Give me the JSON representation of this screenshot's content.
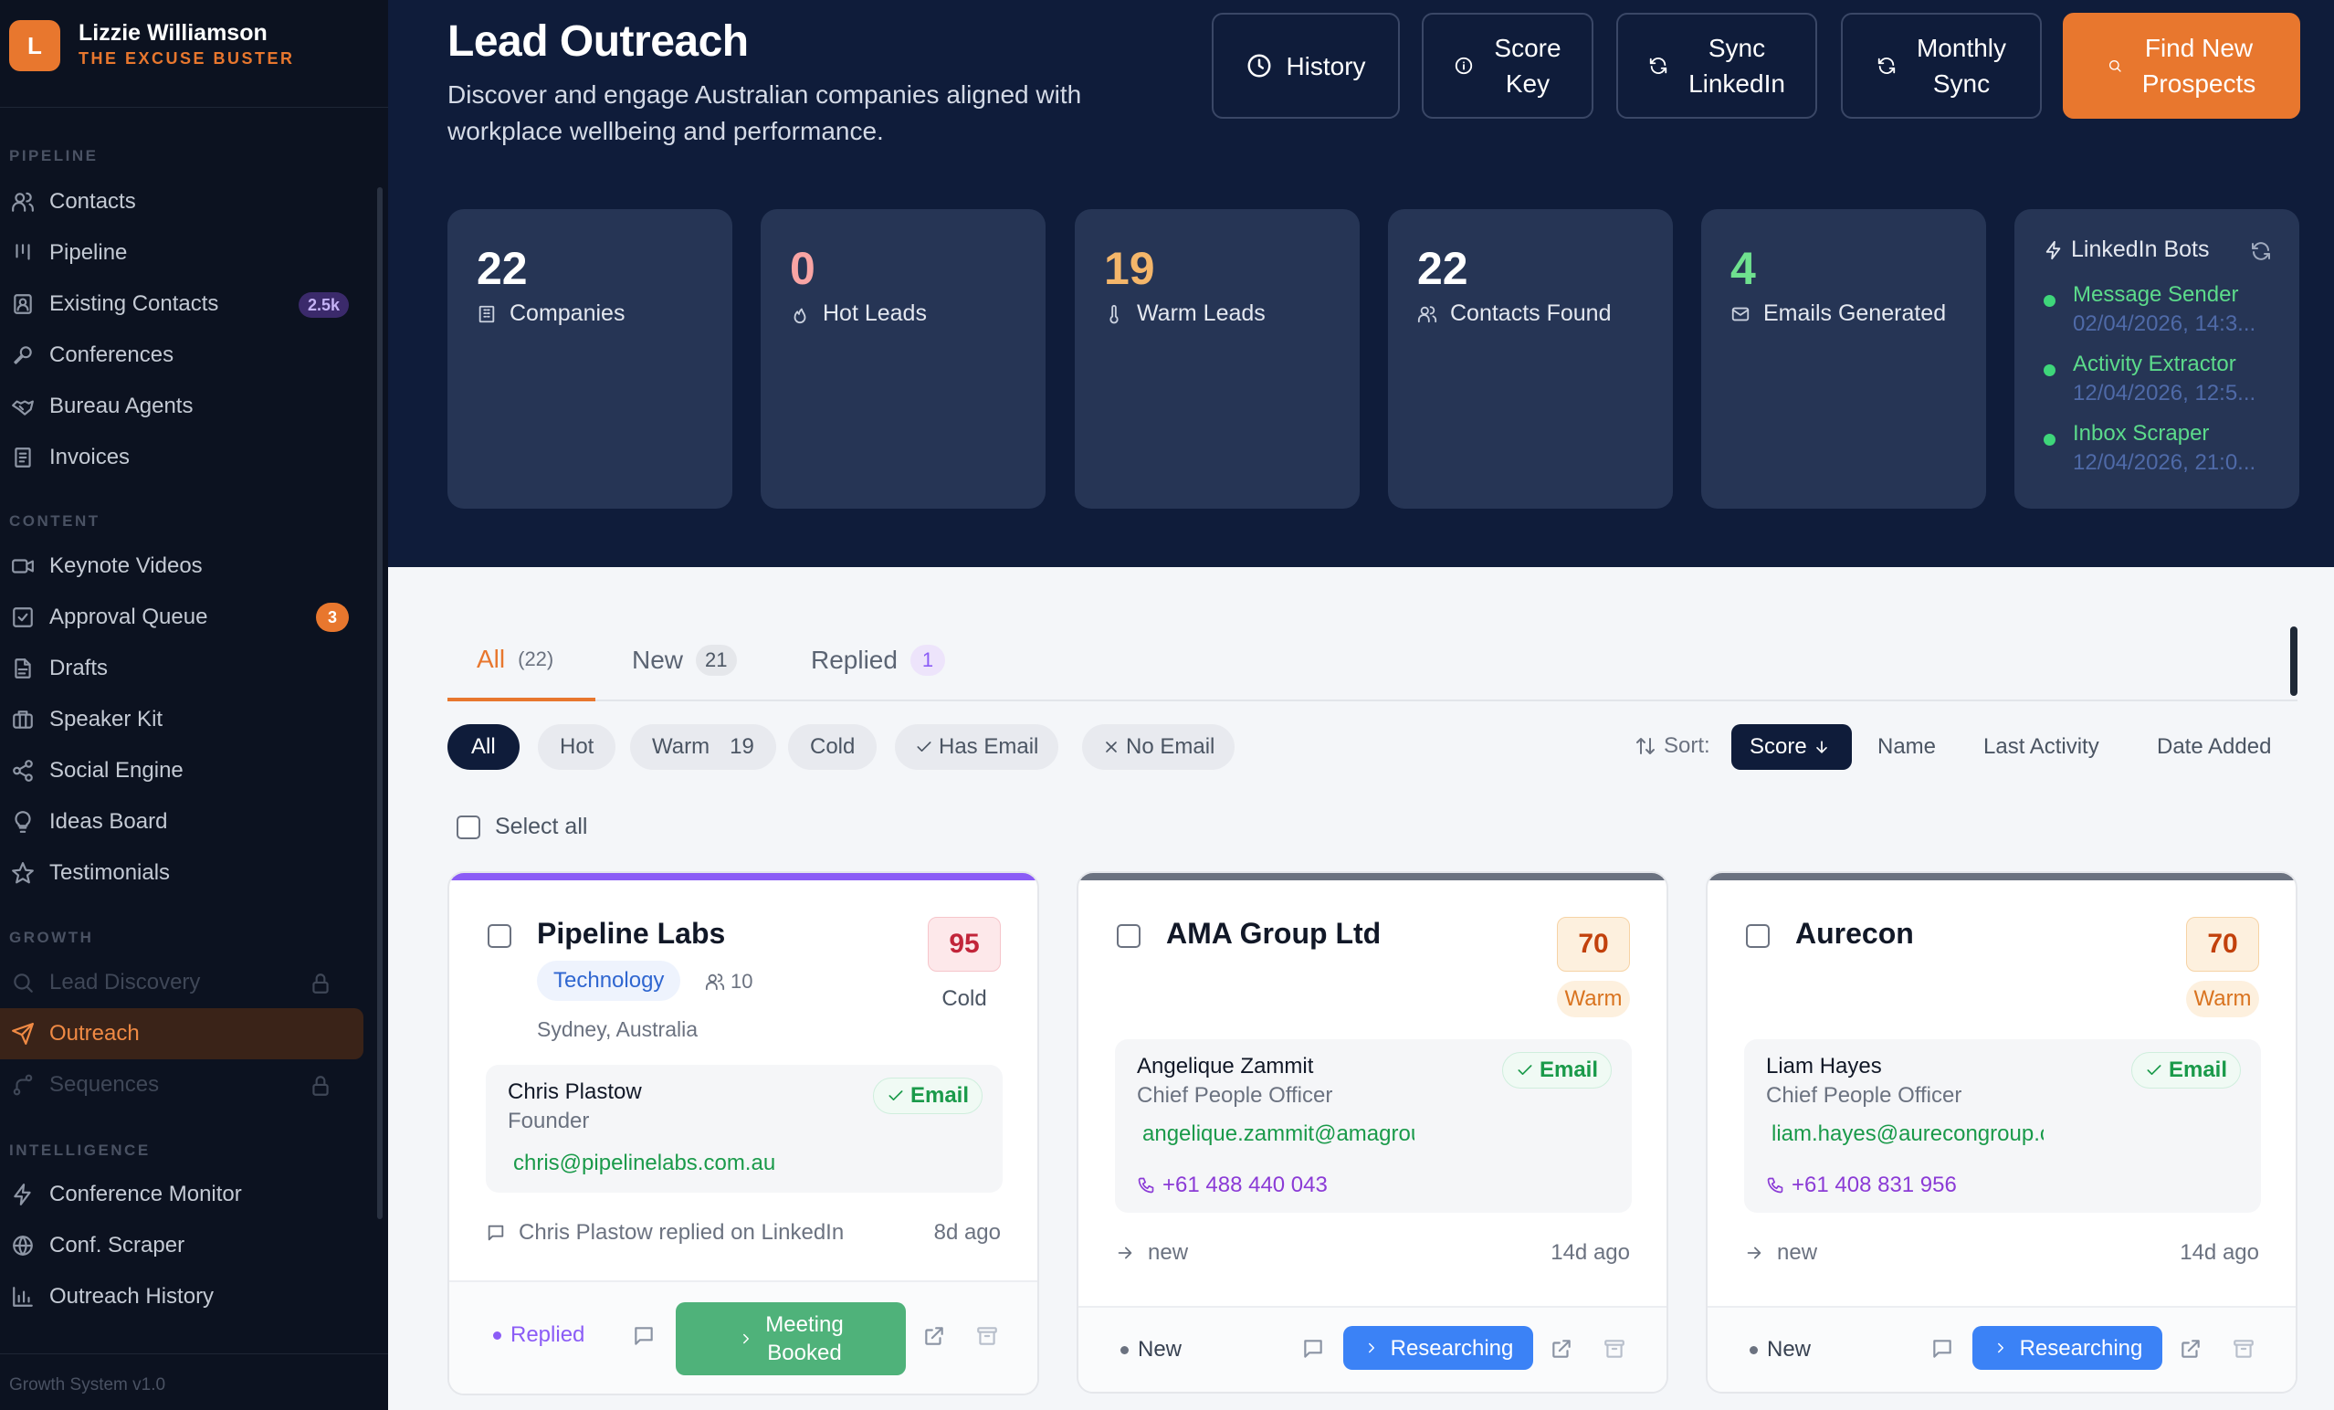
{
  "sidebar": {
    "brand_initial": "L",
    "brand_name": "Lizzie Williamson",
    "brand_sub": "THE EXCUSE BUSTER",
    "sections": {
      "pipeline": "PIPELINE",
      "content": "CONTENT",
      "growth": "GROWTH",
      "intelligence": "INTELLIGENCE"
    },
    "items": {
      "contacts": "Contacts",
      "pipeline": "Pipeline",
      "existing_contacts": "Existing Contacts",
      "existing_badge": "2.5k",
      "conferences": "Conferences",
      "bureau_agents": "Bureau Agents",
      "invoices": "Invoices",
      "keynote_videos": "Keynote Videos",
      "approval_queue": "Approval Queue",
      "approval_badge": "3",
      "drafts": "Drafts",
      "speaker_kit": "Speaker Kit",
      "social_engine": "Social Engine",
      "ideas_board": "Ideas Board",
      "testimonials": "Testimonials",
      "lead_discovery": "Lead Discovery",
      "outreach": "Outreach",
      "sequences": "Sequences",
      "conference_monitor": "Conference Monitor",
      "conf_scraper": "Conf. Scraper",
      "outreach_history": "Outreach History"
    },
    "footer": "Growth System v1.0"
  },
  "header": {
    "title": "Lead Outreach",
    "subtitle": "Discover and engage Australian companies aligned with workplace wellbeing and performance.",
    "buttons": {
      "history": "History",
      "score_key_1": "Score",
      "score_key_2": "Key",
      "sync_linkedin_1": "Sync",
      "sync_linkedin_2": "LinkedIn",
      "monthly_sync_1": "Monthly",
      "monthly_sync_2": "Sync",
      "find_1": "Find New",
      "find_2": "Prospects"
    }
  },
  "stats": {
    "companies": {
      "value": "22",
      "label": "Companies"
    },
    "hot": {
      "value": "0",
      "label": "Hot Leads"
    },
    "warm": {
      "value": "19",
      "label": "Warm Leads"
    },
    "contacts": {
      "value": "22",
      "label": "Contacts Found"
    },
    "emails": {
      "value": "4",
      "label": "Emails Generated"
    }
  },
  "bots": {
    "title": "LinkedIn Bots",
    "items": [
      {
        "name": "Message Sender",
        "time": "02/04/2026, 14:3..."
      },
      {
        "name": "Activity Extractor",
        "time": "12/04/2026, 12:5..."
      },
      {
        "name": "Inbox Scraper",
        "time": "12/04/2026, 21:0..."
      }
    ]
  },
  "tabs": {
    "all": {
      "label": "All",
      "count": "(22)"
    },
    "new": {
      "label": "New",
      "count": "21"
    },
    "replied": {
      "label": "Replied",
      "count": "1"
    }
  },
  "filters": {
    "all": "All",
    "hot": "Hot",
    "warm": "Warm",
    "warm_count": "19",
    "cold": "Cold",
    "has_email": "Has Email",
    "no_email": "No Email"
  },
  "sort": {
    "label": "Sort:",
    "score": "Score",
    "name": "Name",
    "last_activity": "Last Activity",
    "date_added": "Date Added"
  },
  "select_all": "Select all",
  "cards": [
    {
      "name": "Pipeline Labs",
      "score": "95",
      "score_label": "Cold",
      "industry": "Technology",
      "employees": "10",
      "location": "Sydney, Australia",
      "contact_name": "Chris Plastow",
      "contact_role": "Founder",
      "contact_email": "chris@pipelinelabs.com.au",
      "email_badge": "Email",
      "activity": "Chris Plastow replied on LinkedIn",
      "ago": "8d ago",
      "status": "Replied",
      "stage_1": "Meeting",
      "stage_2": "Booked",
      "colors": {
        "bar": "#8b5cf6",
        "stage": "#4fb27a"
      }
    },
    {
      "name": "AMA Group Ltd",
      "score": "70",
      "score_label": "Warm",
      "contact_name": "Angelique Zammit",
      "contact_role": "Chief People Officer",
      "contact_email": "angelique.zammit@amagroupltd.com",
      "contact_phone": "+61 488 440 043",
      "email_badge": "Email",
      "activity": "new",
      "ago": "14d ago",
      "status": "New",
      "stage": "Researching",
      "colors": {
        "bar": "#6b7280",
        "stage": "#3b82f6"
      }
    },
    {
      "name": "Aurecon",
      "score": "70",
      "score_label": "Warm",
      "contact_name": "Liam Hayes",
      "contact_role": "Chief People Officer",
      "contact_email": "liam.hayes@aurecongroup.com",
      "contact_phone": "+61 408 831 956",
      "email_badge": "Email",
      "activity": "new",
      "ago": "14d ago",
      "status": "New",
      "stage": "Researching",
      "colors": {
        "bar": "#6b7280",
        "stage": "#3b82f6"
      }
    }
  ],
  "colors": {
    "accent": "#e8772e",
    "navy": "#0f1c3a",
    "stat_card": "#263555",
    "hot": "#f8a4a4",
    "warm": "#f4b66a",
    "emails": "#6fe08f",
    "sidebar": "#0c1220"
  }
}
